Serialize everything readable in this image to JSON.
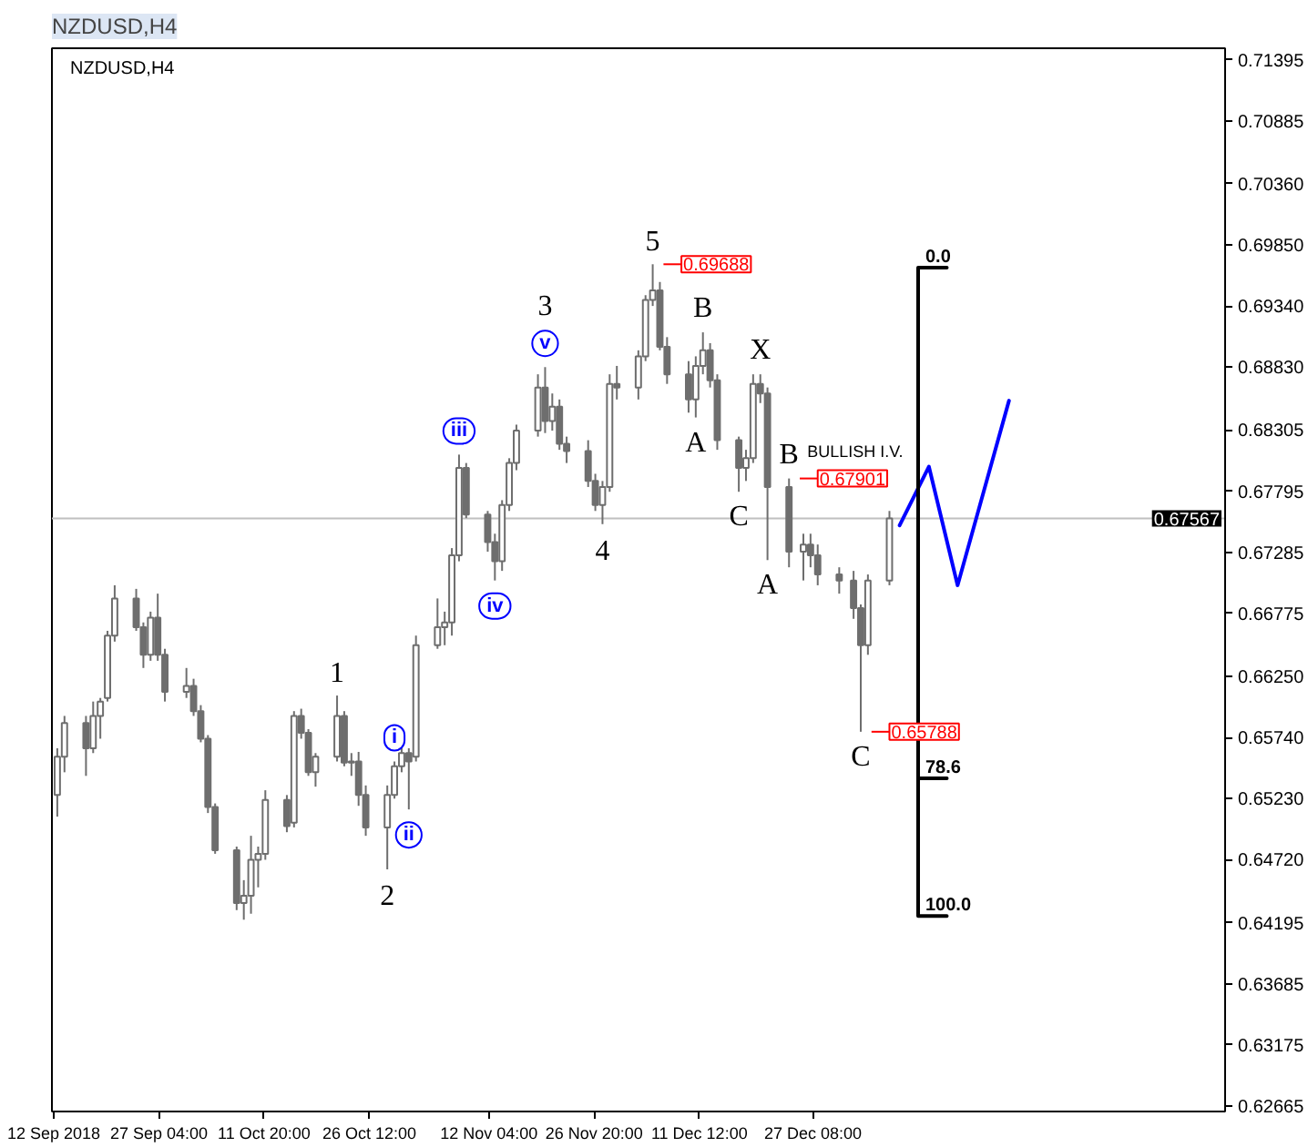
{
  "chart_data": {
    "type": "candlestick",
    "title": "NZDUSD,H4",
    "color": "#6e6e6e",
    "x": [
      "2018-09-13",
      "2018-09-14",
      "2018-09-17",
      "2018-09-18",
      "2018-09-19",
      "2018-09-20",
      "2018-09-21",
      "2018-09-24",
      "2018-09-25",
      "2018-09-26",
      "2018-09-27",
      "2018-09-28",
      "2018-10-01",
      "2018-10-02",
      "2018-10-03",
      "2018-10-04",
      "2018-10-05",
      "2018-10-08",
      "2018-10-09",
      "2018-10-10",
      "2018-10-11",
      "2018-10-12",
      "2018-10-15",
      "2018-10-16",
      "2018-10-17",
      "2018-10-18",
      "2018-10-19",
      "2018-10-22",
      "2018-10-23",
      "2018-10-24",
      "2018-10-25",
      "2018-10-26",
      "2018-10-29",
      "2018-10-30",
      "2018-10-31",
      "2018-11-01",
      "2018-11-02",
      "2018-11-05",
      "2018-11-06",
      "2018-11-07",
      "2018-11-08",
      "2018-11-09",
      "2018-11-12",
      "2018-11-13",
      "2018-11-14",
      "2018-11-15",
      "2018-11-16",
      "2018-11-19",
      "2018-11-20",
      "2018-11-21",
      "2018-11-22",
      "2018-11-23",
      "2018-11-26",
      "2018-11-27",
      "2018-11-28",
      "2018-11-29",
      "2018-11-30",
      "2018-12-03",
      "2018-12-04",
      "2018-12-05",
      "2018-12-06",
      "2018-12-07",
      "2018-12-10",
      "2018-12-11",
      "2018-12-12",
      "2018-12-13",
      "2018-12-14",
      "2018-12-17",
      "2018-12-18",
      "2018-12-19",
      "2018-12-20",
      "2018-12-21",
      "2018-12-24",
      "2018-12-26",
      "2018-12-27",
      "2018-12-28",
      "2018-12-31",
      "2019-01-02",
      "2019-01-03",
      "2019-01-04",
      "2019-01-07"
    ],
    "ohlc": [
      [
        0.6526,
        0.6565,
        0.6508,
        0.6558
      ],
      [
        0.6558,
        0.6592,
        0.6545,
        0.6586
      ],
      [
        0.6586,
        0.6592,
        0.6542,
        0.6565
      ],
      [
        0.6565,
        0.6604,
        0.6561,
        0.6592
      ],
      [
        0.6592,
        0.6607,
        0.6573,
        0.6604
      ],
      [
        0.6607,
        0.6663,
        0.6604,
        0.6659
      ],
      [
        0.6659,
        0.6701,
        0.6654,
        0.669
      ],
      [
        0.669,
        0.6698,
        0.6663,
        0.6666
      ],
      [
        0.6666,
        0.667,
        0.6632,
        0.6643
      ],
      [
        0.6643,
        0.6679,
        0.6638,
        0.6674
      ],
      [
        0.6674,
        0.6694,
        0.6638,
        0.6643
      ],
      [
        0.6643,
        0.6648,
        0.6604,
        0.6612
      ],
      [
        0.6612,
        0.6632,
        0.6607,
        0.6617
      ],
      [
        0.6617,
        0.6623,
        0.6592,
        0.6596
      ],
      [
        0.6596,
        0.6601,
        0.657,
        0.6573
      ],
      [
        0.6573,
        0.6576,
        0.6511,
        0.6516
      ],
      [
        0.6516,
        0.6519,
        0.6477,
        0.648
      ],
      [
        0.648,
        0.6483,
        0.643,
        0.6436
      ],
      [
        0.6436,
        0.6455,
        0.6422,
        0.6442
      ],
      [
        0.6442,
        0.6492,
        0.6427,
        0.6472
      ],
      [
        0.6472,
        0.6483,
        0.6449,
        0.6477
      ],
      [
        0.6477,
        0.653,
        0.6472,
        0.6522
      ],
      [
        0.6522,
        0.6526,
        0.6495,
        0.65
      ],
      [
        0.6503,
        0.6596,
        0.6499,
        0.6592
      ],
      [
        0.6592,
        0.6598,
        0.6573,
        0.6578
      ],
      [
        0.6578,
        0.6581,
        0.6542,
        0.6545
      ],
      [
        0.6545,
        0.6561,
        0.6533,
        0.6558
      ],
      [
        0.6558,
        0.6609,
        0.6554,
        0.6592
      ],
      [
        0.6592,
        0.6596,
        0.655,
        0.6553
      ],
      [
        0.6553,
        0.6561,
        0.6542,
        0.6554
      ],
      [
        0.6554,
        0.6562,
        0.6517,
        0.6526
      ],
      [
        0.6526,
        0.6534,
        0.6492,
        0.6499
      ],
      [
        0.6499,
        0.6534,
        0.6464,
        0.6526
      ],
      [
        0.6526,
        0.6554,
        0.6523,
        0.655
      ],
      [
        0.655,
        0.6567,
        0.6545,
        0.6561
      ],
      [
        0.6561,
        0.6565,
        0.6514,
        0.6554
      ],
      [
        0.6558,
        0.6659,
        0.6554,
        0.6651
      ],
      [
        0.6651,
        0.669,
        0.6648,
        0.6666
      ],
      [
        0.6666,
        0.6679,
        0.6651,
        0.667
      ],
      [
        0.667,
        0.6732,
        0.6659,
        0.6726
      ],
      [
        0.6726,
        0.681,
        0.6721,
        0.6799
      ],
      [
        0.6799,
        0.6803,
        0.6757,
        0.676
      ],
      [
        0.676,
        0.6763,
        0.6729,
        0.6737
      ],
      [
        0.6737,
        0.6744,
        0.6705,
        0.6721
      ],
      [
        0.6721,
        0.6772,
        0.6713,
        0.6768
      ],
      [
        0.6768,
        0.6807,
        0.6763,
        0.6803
      ],
      [
        0.6803,
        0.6835,
        0.6797,
        0.683
      ],
      [
        0.683,
        0.6877,
        0.6825,
        0.6866
      ],
      [
        0.6866,
        0.6883,
        0.6828,
        0.6838
      ],
      [
        0.6838,
        0.6861,
        0.683,
        0.685
      ],
      [
        0.685,
        0.6856,
        0.6814,
        0.6819
      ],
      [
        0.6819,
        0.6825,
        0.6803,
        0.6813
      ],
      [
        0.6813,
        0.6822,
        0.6783,
        0.6788
      ],
      [
        0.6788,
        0.6794,
        0.6763,
        0.6768
      ],
      [
        0.6768,
        0.6788,
        0.6752,
        0.6783
      ],
      [
        0.6783,
        0.6877,
        0.6779,
        0.6869
      ],
      [
        0.6869,
        0.6884,
        0.6856,
        0.6866
      ],
      [
        0.6866,
        0.6897,
        0.6856,
        0.6892
      ],
      [
        0.6892,
        0.6943,
        0.6888,
        0.6939
      ],
      [
        0.6939,
        0.69688,
        0.6934,
        0.6947
      ],
      [
        0.6947,
        0.6954,
        0.6897,
        0.69
      ],
      [
        0.69,
        0.6908,
        0.6869,
        0.6877
      ],
      [
        0.6877,
        0.6888,
        0.6845,
        0.6856
      ],
      [
        0.6856,
        0.6892,
        0.6841,
        0.6884
      ],
      [
        0.6884,
        0.6912,
        0.6877,
        0.6897
      ],
      [
        0.6897,
        0.6903,
        0.6866,
        0.6872
      ],
      [
        0.6872,
        0.6877,
        0.6814,
        0.6822
      ],
      [
        0.6822,
        0.6825,
        0.6779,
        0.6799
      ],
      [
        0.6799,
        0.6814,
        0.6788,
        0.6807
      ],
      [
        0.6807,
        0.6877,
        0.6803,
        0.6869
      ],
      [
        0.6869,
        0.6877,
        0.6853,
        0.6861
      ],
      [
        0.6861,
        0.6866,
        0.6722,
        0.6783
      ],
      [
        0.6783,
        0.67901,
        0.6716,
        0.6729
      ],
      [
        0.6729,
        0.6744,
        0.6705,
        0.6735
      ],
      [
        0.6735,
        0.6744,
        0.6716,
        0.6726
      ],
      [
        0.6726,
        0.6735,
        0.6701,
        0.671
      ],
      [
        0.671,
        0.6716,
        0.6694,
        0.6705
      ],
      [
        0.6705,
        0.6713,
        0.6673,
        0.6682
      ],
      [
        0.6682,
        0.6685,
        0.65788,
        0.6651
      ],
      [
        0.6651,
        0.671,
        0.6643,
        0.6705
      ],
      [
        0.6705,
        0.6763,
        0.6701,
        0.67567
      ]
    ],
    "series": [
      {
        "type": "line",
        "color": "#0000ff",
        "x": [
          "2019-01-08T10:00",
          "2019-01-12T12:00",
          "2019-01-16T12:00",
          "2019-01-23T16:00"
        ],
        "values": [
          0.6751,
          0.68,
          0.6701,
          0.6855
        ]
      },
      {
        "type": "line",
        "color": "#000000",
        "x": [
          "2019-01-15T00:00",
          "2019-01-11T00:00",
          "2019-01-11T00:00",
          "2019-01-15T00:00"
        ],
        "values": [
          0.6966,
          0.6966,
          0.6425,
          0.6425
        ]
      },
      {
        "type": "line",
        "color": "#000000",
        "x": [
          "2019-01-11T00:00",
          "2019-01-15T00:00"
        ],
        "values": [
          0.654,
          0.654
        ]
      }
    ],
    "xlim": [
      "2018-09-12T06:00",
      "2019-02-22T19:00"
    ],
    "ylim": [
      0.6262,
      0.7149
    ],
    "xticks": [
      {
        "value": "2018-09-12T12:00",
        "label": "12 Sep 2018"
      },
      {
        "value": "2018-09-27T04:00",
        "label": "27 Sep 04:00"
      },
      {
        "value": "2018-10-11T20:00",
        "label": "11 Oct 20:00"
      },
      {
        "value": "2018-10-26T12:00",
        "label": "26 Oct 12:00"
      },
      {
        "value": "2018-11-12T04:00",
        "label": "12 Nov 04:00"
      },
      {
        "value": "2018-11-26T20:00",
        "label": "26 Nov 20:00"
      },
      {
        "value": "2018-12-11T12:00",
        "label": "11 Dec 12:00"
      },
      {
        "value": "2018-12-27T08:00",
        "label": "27 Dec 08:00"
      }
    ],
    "yticks": [
      0.71395,
      0.70885,
      {
        "value": 0.7036,
        "label": "0.70360"
      },
      {
        "value": 0.6985,
        "label": "0.69850"
      },
      {
        "value": 0.6934,
        "label": "0.69340"
      },
      {
        "value": 0.6883,
        "label": "0.68830"
      },
      0.68305,
      0.67795,
      0.67285,
      0.66775,
      {
        "value": 0.6625,
        "label": "0.66250"
      },
      {
        "value": 0.6574,
        "label": "0.65740"
      },
      {
        "value": 0.6523,
        "label": "0.65230"
      },
      {
        "value": 0.6472,
        "label": "0.64720"
      },
      0.64195,
      0.63685,
      0.63175,
      0.62665
    ],
    "ref_lines": [
      {
        "axis": "y",
        "value": 0.67567,
        "label": "0.67567",
        "color": "#c0c0c0"
      }
    ],
    "annotations": [
      {
        "text": "1",
        "x": "2018-10-22",
        "y": 0.6609
      },
      {
        "text": "2",
        "x": "2018-10-29",
        "y": 0.6464
      },
      {
        "text": "i",
        "x": "2018-10-30",
        "y": 0.6554
      },
      {
        "text": "ii",
        "x": "2018-11-01",
        "y": 0.6514
      },
      {
        "text": "iii",
        "x": "2018-11-08",
        "y": 0.681
      },
      {
        "text": "iv",
        "x": "2018-11-13",
        "y": 0.6705
      },
      {
        "text": "v",
        "x": "2018-11-20",
        "y": 0.6883
      },
      {
        "text": "3",
        "x": "2018-11-20",
        "y": 0.6883
      },
      {
        "text": "4",
        "x": "2018-11-28",
        "y": 0.6752
      },
      {
        "text": "5",
        "x": "2018-12-05",
        "y": 0.69688
      },
      {
        "text": "0.69688",
        "x": "2018-12-05",
        "y": 0.69688
      },
      {
        "text": "A",
        "x": "2018-12-11",
        "y": 0.6841
      },
      {
        "text": "B",
        "x": "2018-12-12",
        "y": 0.6912
      },
      {
        "text": "C",
        "x": "2018-12-17",
        "y": 0.6779
      },
      {
        "text": "X",
        "x": "2018-12-20",
        "y": 0.6877
      },
      {
        "text": "B",
        "x": "2018-12-24",
        "y": 0.67901
      },
      {
        "text": "A",
        "x": "2018-12-21",
        "y": 0.6722
      },
      {
        "text": "BULLISH I.V.",
        "x": "2018-12-24",
        "y": 0.67901
      },
      {
        "text": "0.67901",
        "x": "2018-12-24",
        "y": 0.67901
      },
      {
        "text": "C",
        "x": "2019-01-03",
        "y": 0.65788
      },
      {
        "text": "0.65788",
        "x": "2019-01-03",
        "y": 0.65788
      },
      {
        "text": "0.0",
        "x": "2019-01-11T00:00",
        "y": 0.6966
      },
      {
        "text": "78.6",
        "x": "2019-01-11T00:00",
        "y": 0.654
      },
      {
        "text": "100.0",
        "x": "2019-01-11T00:00",
        "y": 0.6425
      }
    ]
  }
}
